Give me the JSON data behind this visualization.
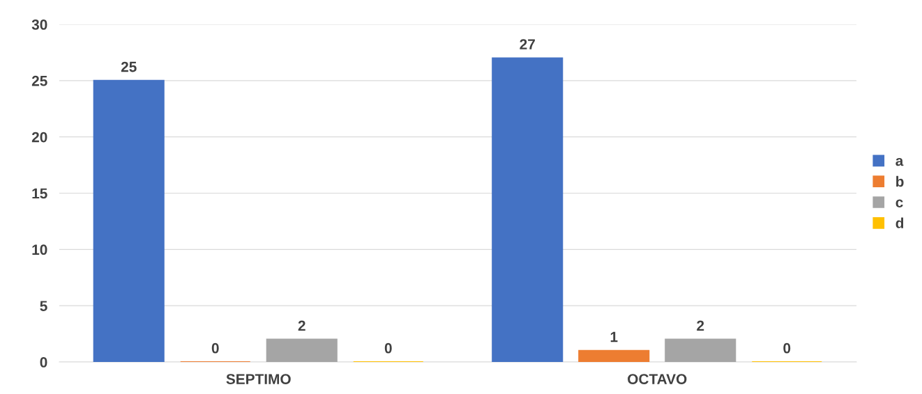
{
  "chart_data": {
    "type": "bar",
    "categories": [
      "SEPTIMO",
      "OCTAVO"
    ],
    "series": [
      {
        "name": "a",
        "color": "#4472c4",
        "values": [
          25,
          27
        ]
      },
      {
        "name": "b",
        "color": "#ed7d31",
        "values": [
          0,
          1
        ]
      },
      {
        "name": "c",
        "color": "#a5a5a5",
        "values": [
          2,
          2
        ]
      },
      {
        "name": "d",
        "color": "#ffc000",
        "values": [
          0,
          0
        ]
      }
    ],
    "ylim": [
      0,
      30
    ],
    "yticks": [
      0,
      5,
      10,
      15,
      20,
      25,
      30
    ],
    "grid": "y",
    "legend": "right",
    "data_labels": true
  }
}
